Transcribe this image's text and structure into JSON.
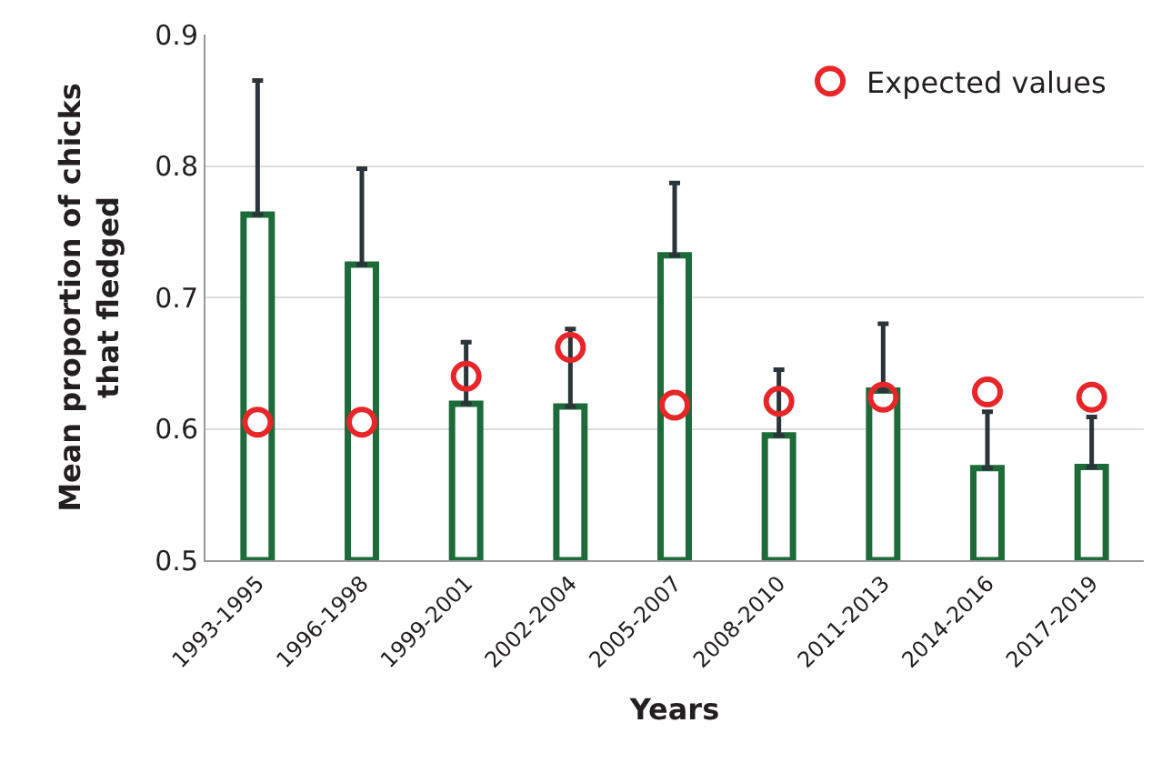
{
  "chart_data": {
    "type": "bar",
    "xlabel": "Years",
    "ylabel": "Mean proportion of chicks that fledged",
    "categories": [
      "1993-1995",
      "1996-1998",
      "1999-2001",
      "2002-2004",
      "2005-2007",
      "2008-2010",
      "2011-2013",
      "2014-2016",
      "2017-2019"
    ],
    "series": [
      {
        "color": "#1e6b3a",
        "values": [
          0.763,
          0.725,
          0.619,
          0.617,
          0.732,
          0.595,
          0.629,
          0.57,
          0.571
        ],
        "errors": [
          [
            0.763,
            0.865
          ],
          [
            0.725,
            0.798
          ],
          [
            0.619,
            0.666
          ],
          [
            0.617,
            0.676
          ],
          [
            0.732,
            0.787
          ],
          [
            0.595,
            0.645
          ],
          [
            0.629,
            0.68
          ],
          [
            0.57,
            0.613
          ],
          [
            0.571,
            0.609
          ]
        ]
      },
      {
        "type": "scatter",
        "name": "Expected values",
        "color": "#e8262a",
        "marker": "circle",
        "values": [
          0.605,
          0.605,
          0.64,
          0.662,
          0.618,
          0.621,
          0.624,
          0.628,
          0.624
        ]
      }
    ],
    "ylim": [
      0.5,
      0.9
    ],
    "yticks": [
      0.5,
      0.6,
      0.7,
      0.8,
      0.9
    ],
    "grid": "y",
    "legend": "top right"
  }
}
